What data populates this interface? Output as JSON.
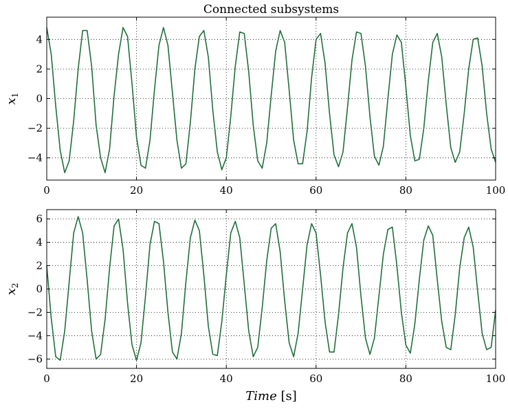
{
  "chart_data": [
    {
      "type": "line",
      "title": "Connected subsystems",
      "ylabel_main": "x",
      "ylabel_sub": "1",
      "xlabel": "",
      "xlim": [
        0,
        100
      ],
      "ylim": [
        -5.5,
        5.5
      ],
      "xticks": [
        "0",
        "20",
        "40",
        "60",
        "80",
        "100"
      ],
      "xtick_values": [
        0,
        20,
        40,
        60,
        80,
        100
      ],
      "yticks": [
        "−4",
        "−2",
        "0",
        "2",
        "4"
      ],
      "ytick_values": [
        -4,
        -2,
        0,
        2,
        4
      ],
      "grid": true,
      "series": [
        {
          "color": "#1f6f3a",
          "x": [
            0,
            1,
            2,
            3,
            4,
            5,
            6,
            7,
            8,
            9,
            10,
            11,
            12,
            13,
            14,
            15,
            16,
            17,
            18,
            19,
            20,
            21,
            22,
            23,
            24,
            25,
            26,
            27,
            28,
            29,
            30,
            31,
            32,
            33,
            34,
            35,
            36,
            37,
            38,
            39,
            40,
            41,
            42,
            43,
            44,
            45,
            46,
            47,
            48,
            49,
            50,
            51,
            52,
            53,
            54,
            55,
            56,
            57,
            58,
            59,
            60,
            61,
            62,
            63,
            64,
            65,
            66,
            67,
            68,
            69,
            70,
            71,
            72,
            73,
            74,
            75,
            76,
            77,
            78,
            79,
            80,
            81,
            82,
            83,
            84,
            85,
            86,
            87,
            88,
            89,
            90,
            91,
            92,
            93,
            94,
            95,
            96,
            97,
            98,
            99,
            100
          ],
          "y": [
            4.8,
            3.0,
            -0.5,
            -3.5,
            -5.0,
            -4.2,
            -1.5,
            2.0,
            4.6,
            4.6,
            2.2,
            -1.8,
            -4.0,
            -5.0,
            -3.4,
            0.2,
            3.0,
            4.8,
            4.2,
            1.0,
            -2.6,
            -4.5,
            -4.7,
            -2.8,
            0.6,
            3.6,
            4.8,
            3.6,
            0.4,
            -2.8,
            -4.7,
            -4.4,
            -1.6,
            2.0,
            4.2,
            4.6,
            2.8,
            -0.8,
            -3.6,
            -4.8,
            -4.0,
            -1.2,
            2.2,
            4.5,
            4.4,
            1.8,
            -1.8,
            -4.2,
            -4.7,
            -3.0,
            0.2,
            3.2,
            4.6,
            3.8,
            0.6,
            -2.8,
            -4.4,
            -4.4,
            -2.2,
            1.4,
            4.0,
            4.4,
            2.4,
            -1.0,
            -3.8,
            -4.6,
            -3.6,
            -0.6,
            2.6,
            4.5,
            4.4,
            2.2,
            -1.2,
            -3.9,
            -4.5,
            -3.2,
            0.0,
            3.0,
            4.3,
            3.8,
            0.8,
            -2.5,
            -4.2,
            -4.1,
            -2.0,
            1.2,
            3.8,
            4.4,
            2.8,
            -0.4,
            -3.3,
            -4.3,
            -3.6,
            -1.0,
            2.0,
            4.0,
            4.1,
            2.2,
            -1.0,
            -3.4,
            -4.3
          ]
        }
      ]
    },
    {
      "type": "line",
      "title": "",
      "ylabel_main": "x",
      "ylabel_sub": "2",
      "xlabel": "Time [s]",
      "xlim": [
        0,
        100
      ],
      "ylim": [
        -6.8,
        6.8
      ],
      "xticks": [
        "0",
        "20",
        "40",
        "60",
        "80",
        "100"
      ],
      "xtick_values": [
        0,
        20,
        40,
        60,
        80,
        100
      ],
      "yticks": [
        "−6",
        "−4",
        "−2",
        "0",
        "2",
        "4",
        "6"
      ],
      "ytick_values": [
        -6,
        -4,
        -2,
        0,
        2,
        4,
        6
      ],
      "grid": true,
      "series": [
        {
          "color": "#1f6f3a",
          "x": [
            0,
            1,
            2,
            3,
            4,
            5,
            6,
            7,
            8,
            9,
            10,
            11,
            12,
            13,
            14,
            15,
            16,
            17,
            18,
            19,
            20,
            21,
            22,
            23,
            24,
            25,
            26,
            27,
            28,
            29,
            30,
            31,
            32,
            33,
            34,
            35,
            36,
            37,
            38,
            39,
            40,
            41,
            42,
            43,
            44,
            45,
            46,
            47,
            48,
            49,
            50,
            51,
            52,
            53,
            54,
            55,
            56,
            57,
            58,
            59,
            60,
            61,
            62,
            63,
            64,
            65,
            66,
            67,
            68,
            69,
            70,
            71,
            72,
            73,
            74,
            75,
            76,
            77,
            78,
            79,
            80,
            81,
            82,
            83,
            84,
            85,
            86,
            87,
            88,
            89,
            90,
            91,
            92,
            93,
            94,
            95,
            96,
            97,
            98,
            99,
            100
          ],
          "y": [
            2.0,
            -2.5,
            -5.8,
            -6.1,
            -3.6,
            0.6,
            4.8,
            6.2,
            4.8,
            0.8,
            -3.6,
            -6.0,
            -5.6,
            -2.6,
            1.8,
            5.4,
            6.0,
            3.4,
            -1.2,
            -4.8,
            -6.1,
            -4.6,
            -0.6,
            3.8,
            5.8,
            5.6,
            2.4,
            -2.0,
            -5.4,
            -6.0,
            -3.8,
            0.6,
            4.4,
            5.9,
            5.0,
            1.2,
            -3.2,
            -5.6,
            -5.7,
            -2.8,
            1.2,
            4.8,
            5.8,
            4.4,
            0.4,
            -3.6,
            -5.8,
            -5.0,
            -1.6,
            2.4,
            5.2,
            5.6,
            3.2,
            -1.0,
            -4.6,
            -5.8,
            -3.8,
            0.0,
            3.8,
            5.6,
            4.8,
            1.2,
            -2.8,
            -5.4,
            -5.4,
            -2.2,
            1.8,
            4.8,
            5.6,
            3.6,
            -0.6,
            -4.2,
            -5.6,
            -4.2,
            -0.6,
            3.0,
            5.1,
            5.3,
            2.0,
            -2.0,
            -4.8,
            -5.5,
            -3.0,
            0.8,
            4.2,
            5.4,
            4.6,
            0.8,
            -2.8,
            -5.0,
            -5.2,
            -2.2,
            1.8,
            4.4,
            5.3,
            3.6,
            -0.2,
            -3.8,
            -5.2,
            -5.0,
            -1.8
          ]
        }
      ]
    }
  ]
}
